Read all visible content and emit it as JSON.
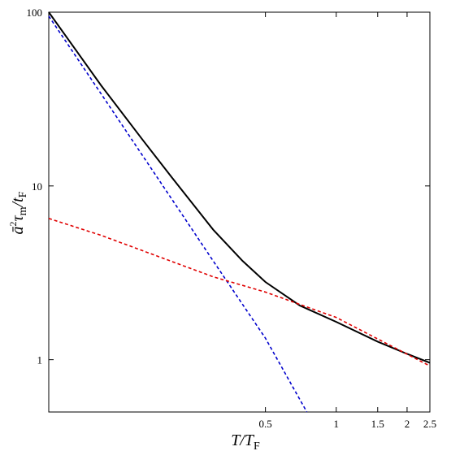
{
  "chart_data": {
    "type": "line",
    "title": "",
    "xlabel": "T/T_F",
    "ylabel": "ā²τ_m/t_F",
    "xscale": "log",
    "yscale": "log",
    "xlim": [
      0.06,
      2.5
    ],
    "ylim": [
      0.5,
      100
    ],
    "grid": false,
    "legend": "none",
    "x_ticks": [
      {
        "value": 0.5,
        "label": "0.5"
      },
      {
        "value": 1,
        "label": "1"
      },
      {
        "value": 1.5,
        "label": "1.5"
      },
      {
        "value": 2,
        "label": "2"
      },
      {
        "value": 2.5,
        "label": "2.5"
      }
    ],
    "y_ticks": [
      {
        "value": 1,
        "label": "1"
      },
      {
        "value": 10,
        "label": "10"
      },
      {
        "value": 100,
        "label": "100"
      }
    ],
    "series": [
      {
        "color": "#000000",
        "style": "solid",
        "x": [
          0.06,
          0.08,
          0.1,
          0.15,
          0.2,
          0.3,
          0.4,
          0.5,
          0.7,
          1.0,
          1.5,
          2.0,
          2.5
        ],
        "y": [
          100,
          58,
          38,
          18.5,
          11.2,
          5.6,
          3.7,
          2.8,
          2.05,
          1.65,
          1.27,
          1.08,
          0.96
        ]
      },
      {
        "color": "#0000cc",
        "style": "dashed",
        "x": [
          0.06,
          0.1,
          0.2,
          0.3,
          0.5,
          0.75
        ],
        "y": [
          95,
          34,
          8.4,
          3.7,
          1.33,
          0.5
        ]
      },
      {
        "color": "#e00000",
        "style": "dashed",
        "x": [
          0.06,
          0.1,
          0.3,
          0.5,
          1.0,
          2.5
        ],
        "y": [
          6.5,
          5.2,
          3.0,
          2.45,
          1.75,
          0.92
        ]
      }
    ]
  }
}
